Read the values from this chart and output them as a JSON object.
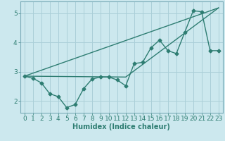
{
  "xlabel": "Humidex (Indice chaleur)",
  "bg_color": "#cce8ee",
  "grid_color": "#aacfd8",
  "line_color": "#2e7d72",
  "xlim": [
    -0.5,
    23.5
  ],
  "ylim": [
    1.6,
    5.4
  ],
  "yticks": [
    2,
    3,
    4,
    5
  ],
  "xticks": [
    0,
    1,
    2,
    3,
    4,
    5,
    6,
    7,
    8,
    9,
    10,
    11,
    12,
    13,
    14,
    15,
    16,
    17,
    18,
    19,
    20,
    21,
    22,
    23
  ],
  "line1_x": [
    0,
    1,
    2,
    3,
    4,
    5,
    6,
    7,
    8,
    9,
    10,
    11,
    12,
    13,
    14,
    15,
    16,
    17,
    18,
    19,
    20,
    21,
    22,
    23
  ],
  "line1_y": [
    2.85,
    2.78,
    2.62,
    2.25,
    2.15,
    1.78,
    1.88,
    2.42,
    2.75,
    2.82,
    2.82,
    2.72,
    2.52,
    3.28,
    3.32,
    3.82,
    4.08,
    3.72,
    3.62,
    4.35,
    5.08,
    5.05,
    3.72,
    3.72
  ],
  "line2_x": [
    0,
    23
  ],
  "line2_y": [
    2.85,
    5.18
  ],
  "line3_x": [
    0,
    23
  ],
  "line3_y": [
    2.85,
    5.18
  ],
  "line4_x": [
    0,
    12,
    23
  ],
  "line4_y": [
    2.85,
    2.82,
    5.18
  ],
  "markersize": 2.5,
  "linewidth": 1.0,
  "label_fontsize": 7,
  "tick_fontsize": 6.5
}
